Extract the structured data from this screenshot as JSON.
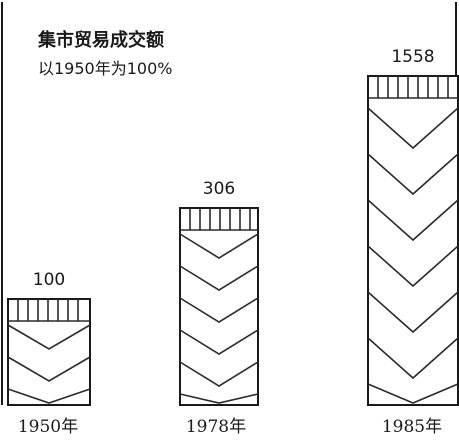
{
  "chart_data": {
    "type": "bar",
    "title": "集市贸易成交额",
    "subtitle": "以1950年为100%",
    "categories": [
      "1950年",
      "1978年",
      "1985年"
    ],
    "values": [
      100,
      306,
      1558
    ],
    "value_labels": [
      "100",
      "306",
      "1558"
    ],
    "xlabel": "",
    "ylabel": "",
    "ylim": [
      0,
      1558
    ],
    "grid": false,
    "legend": "none",
    "colors": {
      "ink": "#1a1a1a",
      "background": "#ffffff"
    }
  }
}
